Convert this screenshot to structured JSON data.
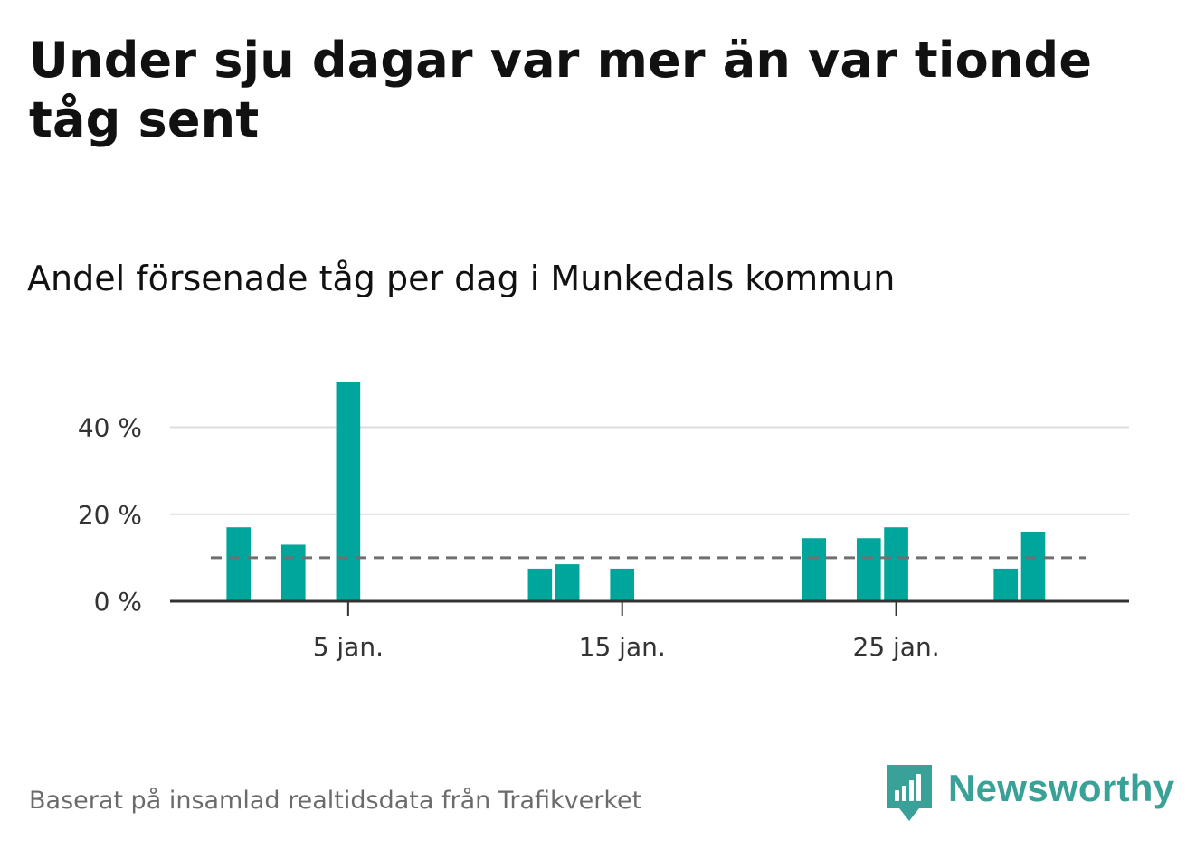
{
  "headline": "Under sju dagar var mer än var tionde tåg sent",
  "subtitle": "Andel försenade tåg per dag i Munkedals kommun",
  "footer": {
    "source": "Baserat på insamlad realtidsdata från Trafikverket",
    "brand": "Newsworthy",
    "brand_icon": "newsworthy-logo-icon"
  },
  "colors": {
    "bar": "#00a69c",
    "grid": "#dddddd",
    "axis": "#333333",
    "reference_line": "#707070",
    "brand": "#3aa198"
  },
  "chart_data": {
    "type": "bar",
    "x": [
      1,
      3,
      5,
      12,
      13,
      15,
      22,
      24,
      25,
      29,
      30
    ],
    "values": [
      17,
      13,
      50.5,
      7.5,
      8.5,
      7.5,
      14.5,
      14.5,
      17,
      7.5,
      16
    ],
    "x_ticks": [
      {
        "x": 5,
        "label": "5 jan."
      },
      {
        "x": 15,
        "label": "15 jan."
      },
      {
        "x": 25,
        "label": "25 jan."
      }
    ],
    "y_ticks": [
      {
        "y": 0,
        "label": "0 %"
      },
      {
        "y": 20,
        "label": "20 %"
      },
      {
        "y": 40,
        "label": "40 %"
      }
    ],
    "xlim": [
      -1.5,
      33.5
    ],
    "ylim": [
      0,
      50.5
    ],
    "reference_line": {
      "y": 10,
      "style": "dashed"
    },
    "title": "",
    "xlabel": "",
    "ylabel": "",
    "grid": true,
    "legend": "none"
  }
}
